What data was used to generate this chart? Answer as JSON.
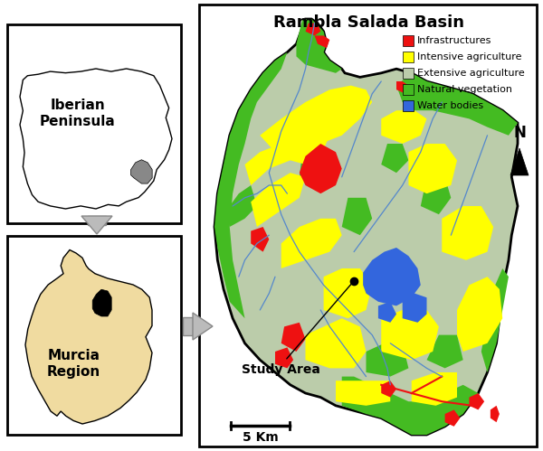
{
  "title": "Rambla Salada Basin",
  "legend_items": [
    {
      "label": "Infrastructures",
      "color": "#EE1111"
    },
    {
      "label": "Intensive agriculture",
      "color": "#FFFF00"
    },
    {
      "label": "Extensive agriculture",
      "color": "#BBCCAA"
    },
    {
      "label": "Natural vegetation",
      "color": "#44BB22"
    },
    {
      "label": "Water bodies",
      "color": "#3366DD"
    }
  ],
  "scale_bar_label": "5 Km",
  "study_area_label": "Study Area",
  "iberian_label": "Iberian\nPeninsula",
  "murcia_label": "Murcia\nRegion",
  "north_label": "N",
  "background_color": "#FFFFFF",
  "arrow_fill": "#BBBBBB",
  "arrow_edge": "#888888",
  "stream_color": "#5588CC",
  "infra_color": "#EE1111",
  "yellow_color": "#FFFF00",
  "ext_ag_color": "#BBCCAA",
  "nat_veg_color": "#44BB22",
  "water_color": "#3366DD",
  "iberian_fill": "#FFFFFF",
  "iberian_murcia_fill": "#888888",
  "murcia_fill": "#F0DBA0",
  "murcia_loc_fill": "#111111"
}
